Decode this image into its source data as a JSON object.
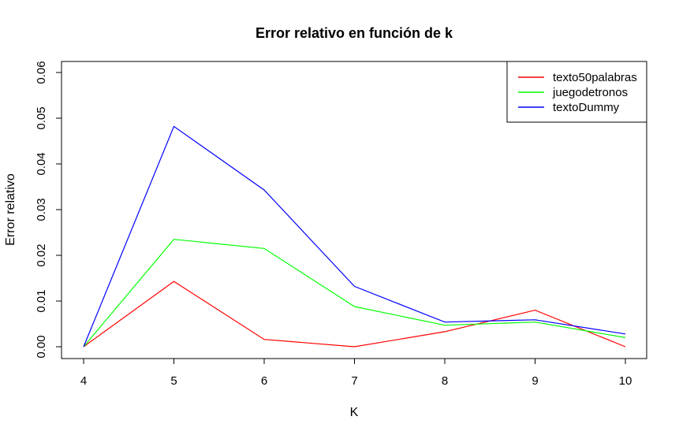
{
  "chart_data": {
    "type": "line",
    "title": "Error relativo en función de k",
    "xlabel": "K",
    "ylabel": "Error relativo",
    "x": [
      4,
      5,
      6,
      7,
      8,
      9,
      10
    ],
    "xlim": [
      4,
      10
    ],
    "ylim": [
      0,
      0.06
    ],
    "xticks": [
      "4",
      "5",
      "6",
      "7",
      "8",
      "9",
      "10"
    ],
    "yticks": [
      "0.00",
      "0.01",
      "0.02",
      "0.03",
      "0.04",
      "0.05",
      "0.06"
    ],
    "grid": false,
    "legend_position": "top-right",
    "series": [
      {
        "name": "texto50palabras",
        "color": "#ff0000",
        "values": [
          0.0,
          0.0143,
          0.0016,
          0.0,
          0.0033,
          0.008,
          0.0
        ]
      },
      {
        "name": "juegodetronos",
        "color": "#00ff00",
        "values": [
          0.0,
          0.0235,
          0.0215,
          0.0088,
          0.0047,
          0.0054,
          0.002
        ]
      },
      {
        "name": "textoDummy",
        "color": "#0000ff",
        "values": [
          0.0,
          0.0482,
          0.0343,
          0.0132,
          0.0054,
          0.0059,
          0.0028
        ]
      }
    ]
  }
}
